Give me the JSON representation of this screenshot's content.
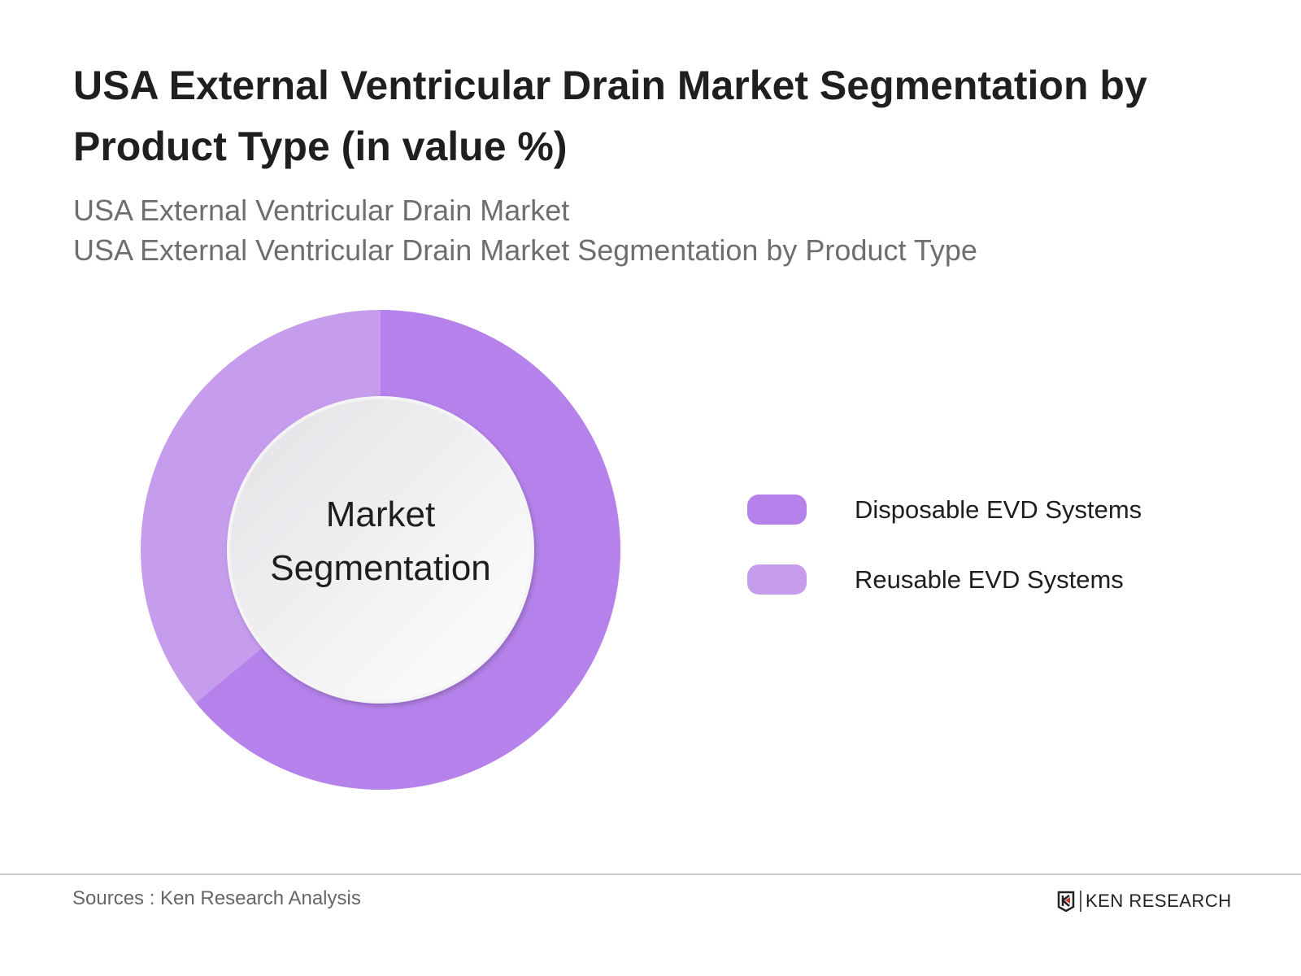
{
  "header": {
    "title": "USA External Ventricular Drain Market Segmentation by Product Type  (in value %)",
    "subtitle_1": "USA External Ventricular Drain Market",
    "subtitle_2": "USA External Ventricular Drain Market Segmentation by Product Type"
  },
  "chart_data": {
    "type": "pie",
    "variant": "donut",
    "center_label": "Market Segmentation",
    "categories": [
      "Disposable EVD Systems",
      "Reusable EVD Systems"
    ],
    "values": [
      64,
      36
    ],
    "colors": [
      "#b482ea",
      "#c69ced"
    ],
    "legend_position": "right"
  },
  "footer": {
    "sources": "Sources : Ken Research Analysis",
    "logo_text": "KEN RESEARCH"
  }
}
